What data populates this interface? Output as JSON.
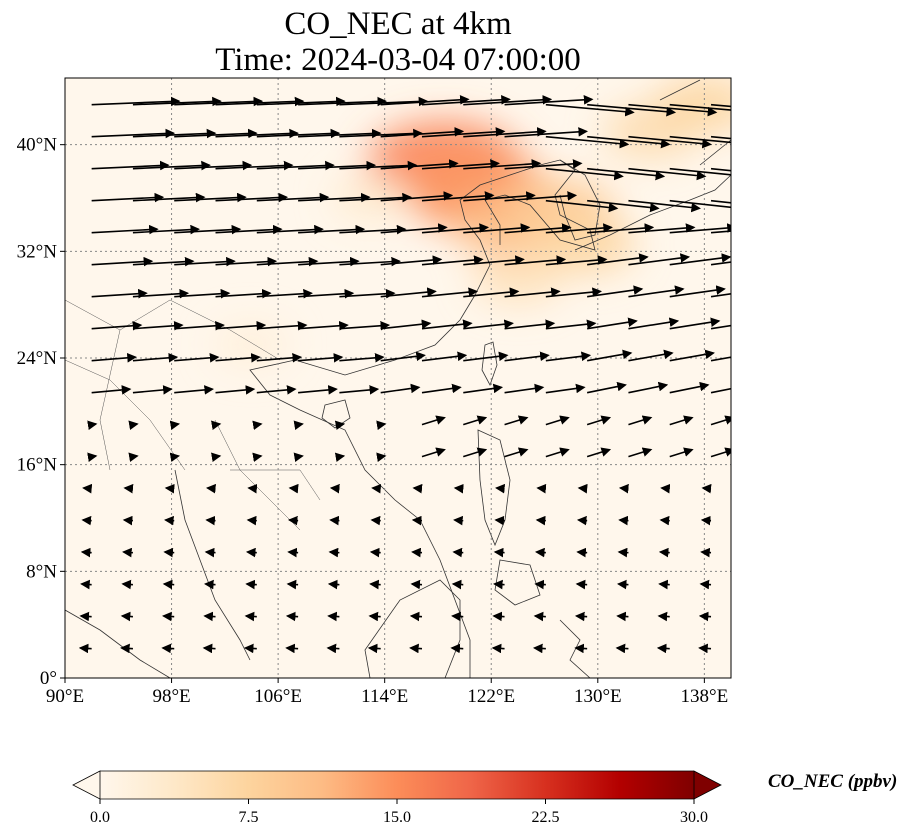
{
  "title": {
    "line1": "CO_NEC at 4km",
    "line2": "Time: 2024-03-04 07:00:00"
  },
  "map": {
    "lon_range": [
      90,
      140
    ],
    "lat_range": [
      0,
      45
    ],
    "lon_ticks": [
      "90°E",
      "98°E",
      "106°E",
      "114°E",
      "122°E",
      "130°E",
      "138°E"
    ],
    "lon_tick_values": [
      90,
      98,
      106,
      114,
      122,
      130,
      138
    ],
    "lat_ticks": [
      "0°",
      "8°N",
      "16°N",
      "24°N",
      "32°N",
      "40°N"
    ],
    "lat_tick_values": [
      0,
      8,
      16,
      24,
      32,
      40
    ],
    "gridlines": "dotted",
    "field": "CO_NEC concentration with wind vectors",
    "plumes": [
      {
        "lon": 118.5,
        "lat": 38.5,
        "value": 16
      },
      {
        "lon": 121,
        "lat": 36.5,
        "value": 14
      },
      {
        "lon": 124,
        "lat": 34,
        "value": 11
      },
      {
        "lon": 127,
        "lat": 35,
        "value": 9
      },
      {
        "lon": 129,
        "lat": 32.5,
        "value": 7
      },
      {
        "lon": 124,
        "lat": 30,
        "value": 5
      },
      {
        "lon": 134,
        "lat": 41,
        "value": 6
      },
      {
        "lon": 138,
        "lat": 43,
        "value": 7
      },
      {
        "lon": 113,
        "lat": 36,
        "value": 3
      },
      {
        "lon": 104,
        "lat": 25,
        "value": 2
      }
    ]
  },
  "colorbar": {
    "label": "CO_NEC (ppbv)",
    "ticks": [
      "0.0",
      "7.5",
      "15.0",
      "22.5",
      "30.0"
    ],
    "range": [
      0,
      30
    ],
    "extend": "both",
    "colormap": [
      "#fff7ec",
      "#fee8c8",
      "#fdd49e",
      "#fdbb84",
      "#fc8d59",
      "#ef6548",
      "#d7301f",
      "#b30000",
      "#7f0000"
    ]
  }
}
